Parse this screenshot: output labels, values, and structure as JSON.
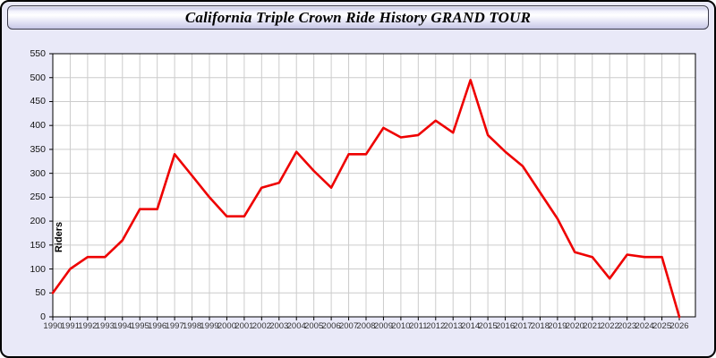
{
  "window": {
    "title": "California Triple Crown Ride History GRAND TOUR"
  },
  "colors": {
    "line": "#ee0000",
    "page_background": "#e9e9f8",
    "plot_background": "#ffffff",
    "grid": "#cccccc",
    "axis": "#000000",
    "x_tick_label": "#333333",
    "y_tick_label": "#111111"
  },
  "chart_data": {
    "type": "line",
    "title": "California Triple Crown Ride History GRAND TOUR",
    "xlabel": "",
    "ylabel": "Riders",
    "x": [
      1990,
      1991,
      1992,
      1993,
      1994,
      1995,
      1996,
      1997,
      1998,
      1999,
      2000,
      2001,
      2002,
      2003,
      2004,
      2005,
      2006,
      2007,
      2008,
      2009,
      2010,
      2011,
      2012,
      2013,
      2014,
      2015,
      2016,
      2017,
      2018,
      2019,
      2020,
      2021,
      2022,
      2023,
      2024,
      2025,
      2026
    ],
    "values": [
      50,
      100,
      125,
      125,
      160,
      225,
      225,
      340,
      295,
      250,
      210,
      210,
      270,
      280,
      345,
      305,
      270,
      340,
      340,
      395,
      375,
      380,
      410,
      385,
      495,
      380,
      345,
      315,
      260,
      205,
      135,
      125,
      80,
      130,
      125,
      125,
      0
    ],
    "ylim": [
      0,
      550
    ],
    "ytick_step": 50,
    "grid": true,
    "legend": "none",
    "line_color": "#ee0000"
  }
}
